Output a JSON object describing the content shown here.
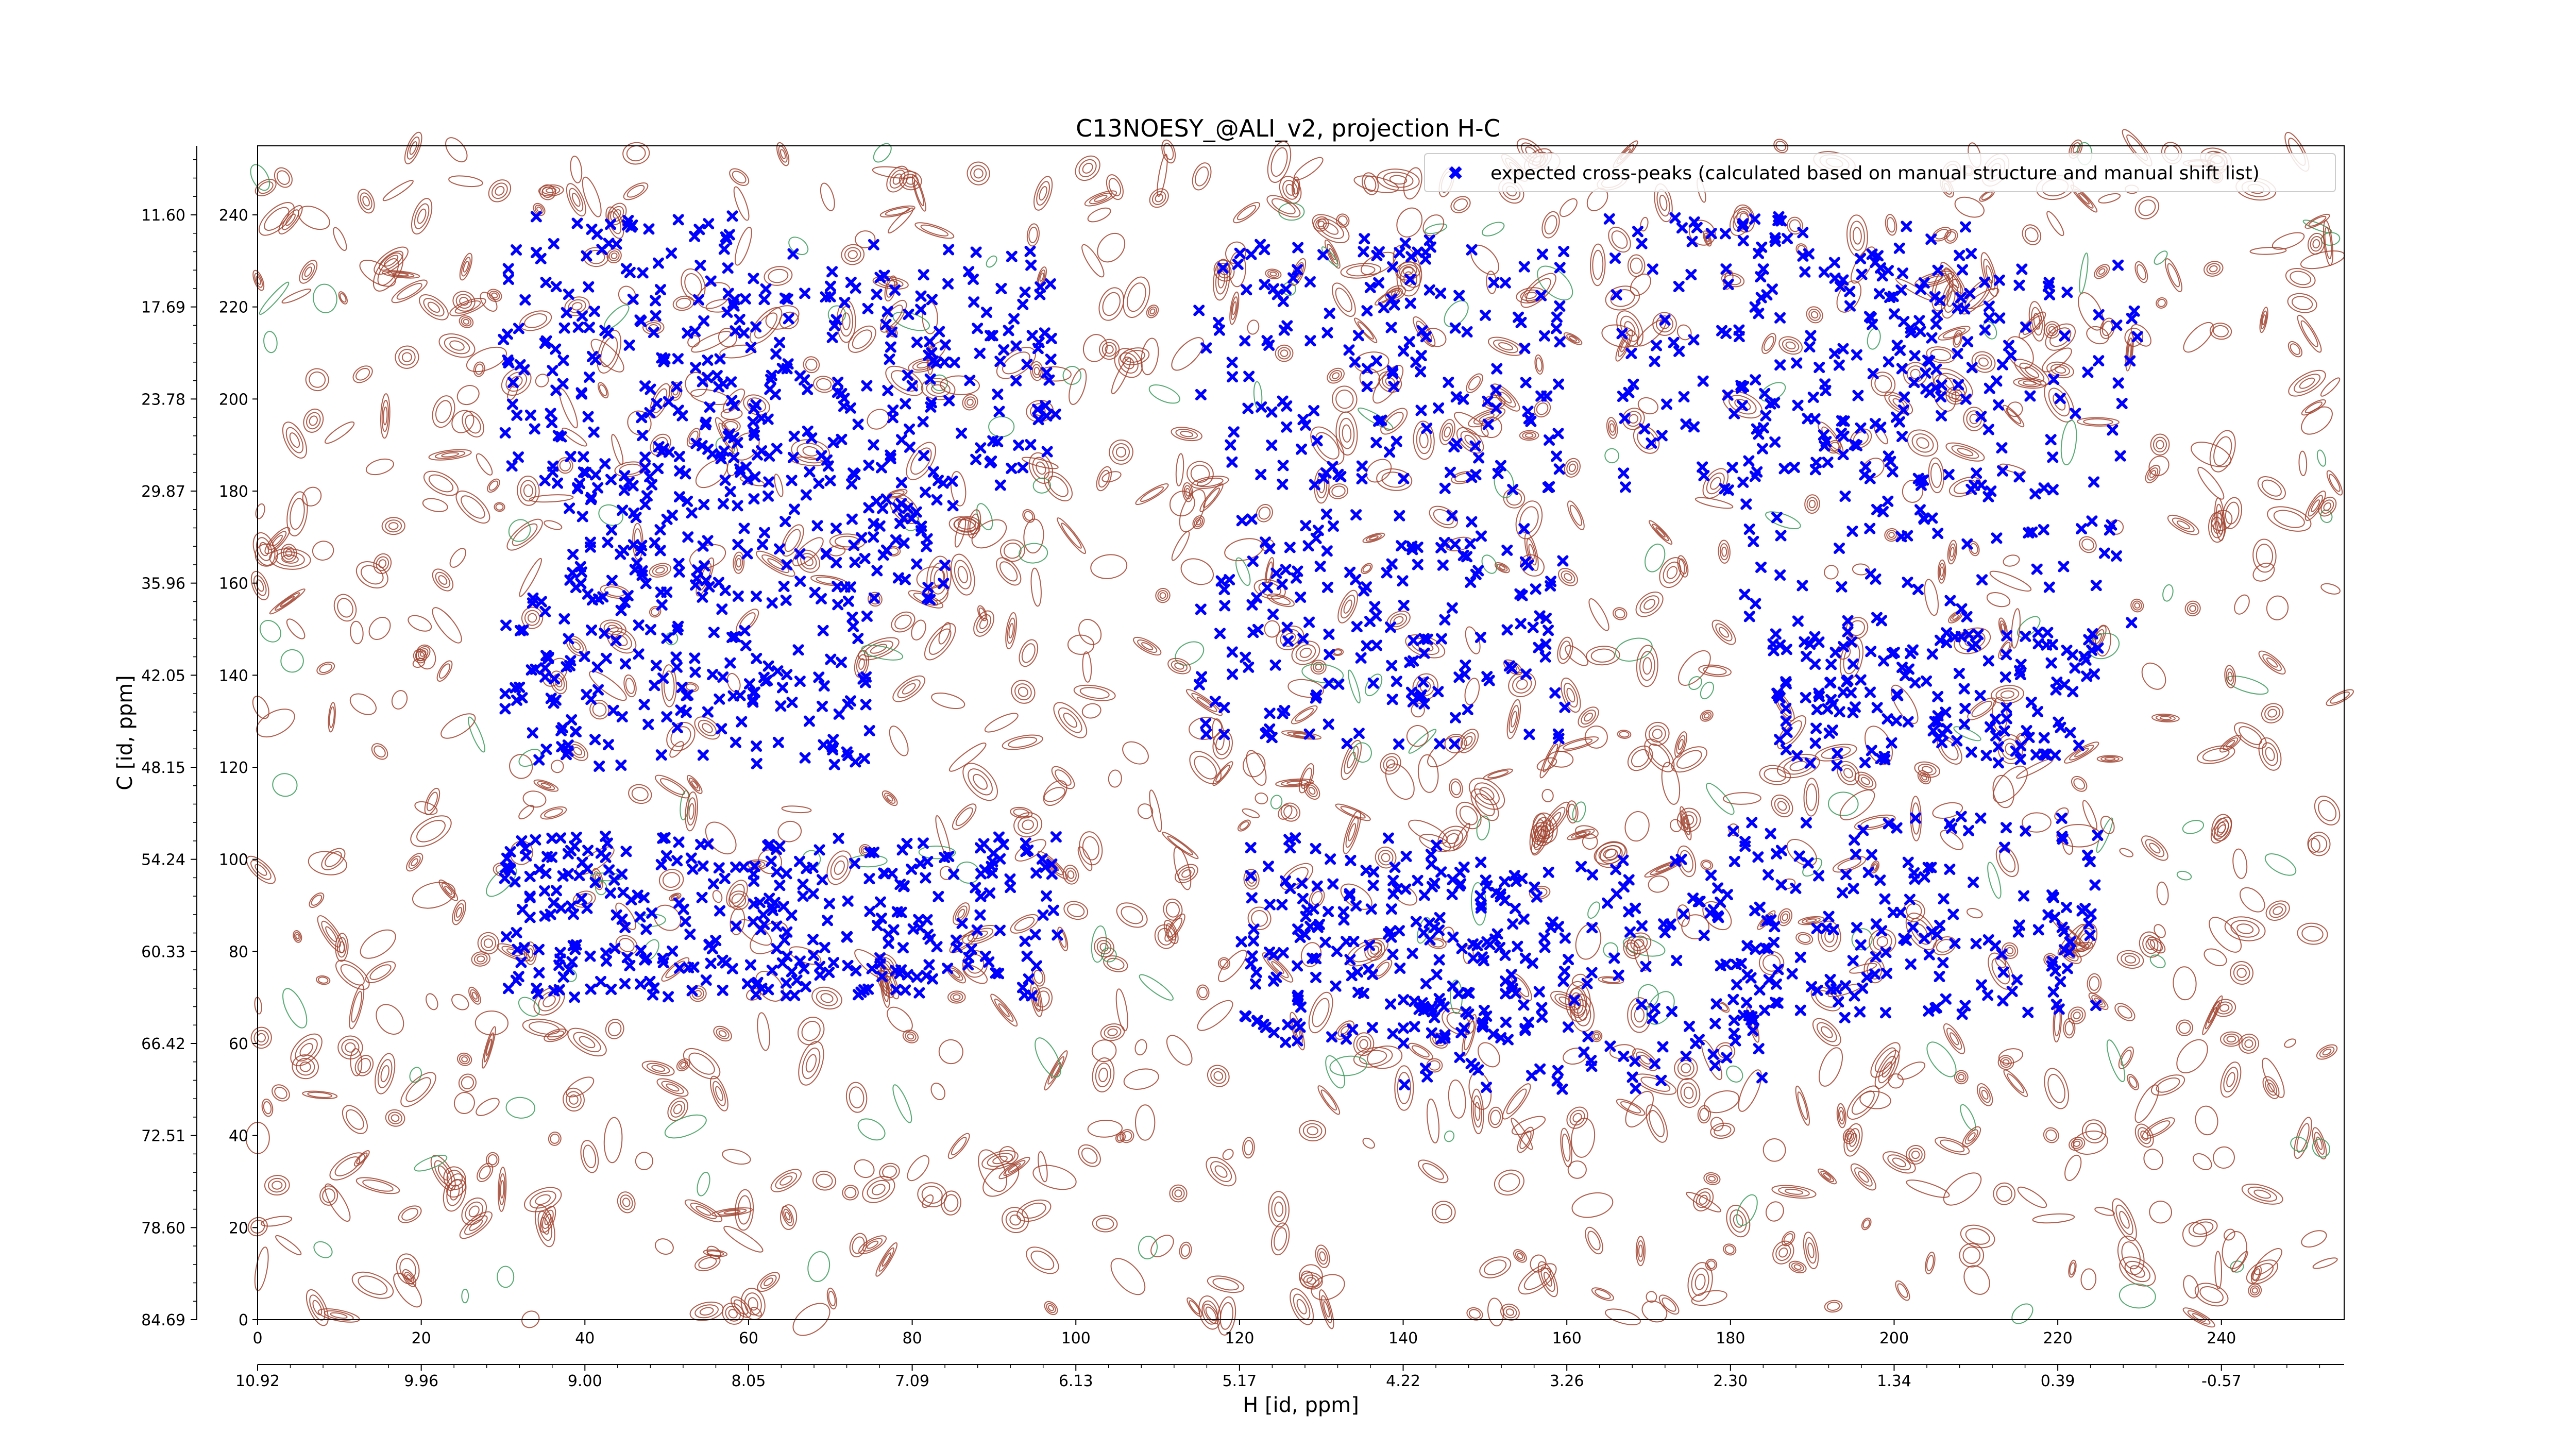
{
  "chart_data": {
    "type": "scatter",
    "title": "C13NOESY_@ALI_v2, projection H-C",
    "xlabel": "H [id, ppm]",
    "ylabel": "C [id, ppm]",
    "xlim": [
      0,
      255
    ],
    "ylim": [
      0,
      255
    ],
    "x_index_ticks": [
      "0",
      "20",
      "40",
      "60",
      "80",
      "100",
      "120",
      "140",
      "160",
      "180",
      "200",
      "220",
      "240"
    ],
    "x_ppm_ticks": [
      "10.92",
      "9.96",
      "9.00",
      "8.05",
      "7.09",
      "6.13",
      "5.17",
      "4.22",
      "3.26",
      "2.30",
      "1.34",
      "0.39",
      "-0.57"
    ],
    "y_index_ticks": [
      "0",
      "20",
      "40",
      "60",
      "80",
      "100",
      "120",
      "140",
      "160",
      "180",
      "200",
      "220",
      "240"
    ],
    "y_ppm_ticks": [
      "84.69",
      "78.60",
      "72.51",
      "66.42",
      "60.33",
      "54.24",
      "48.15",
      "42.05",
      "35.96",
      "29.87",
      "23.78",
      "17.69",
      "11.60"
    ],
    "legend": {
      "label": "expected cross-peaks (calculated based on manual structure and manual shift list)",
      "position": "upper right"
    },
    "colors": {
      "peaks": "#0000ff",
      "positive_contours": "#a0412d",
      "negative_contours": "#3a9a5a"
    },
    "series": [
      {
        "name": "expected cross-peaks (calculated based on manual structure and manual shift list)",
        "marker": "X",
        "clusters": [
          {
            "x": [
              30,
              60
            ],
            "y": [
              180,
              240
            ]
          },
          {
            "x": [
              60,
              98
            ],
            "y": [
              180,
              235
            ]
          },
          {
            "x": [
              38,
              85
            ],
            "y": [
              155,
              190
            ]
          },
          {
            "x": [
              30,
              75
            ],
            "y": [
              120,
              160
            ]
          },
          {
            "x": [
              30,
              65
            ],
            "y": [
              70,
              105
            ]
          },
          {
            "x": [
              60,
              98
            ],
            "y": [
              70,
              105
            ]
          },
          {
            "x": [
              115,
              160
            ],
            "y": [
              180,
              235
            ]
          },
          {
            "x": [
              115,
              160
            ],
            "y": [
              125,
              175
            ]
          },
          {
            "x": [
              120,
              155
            ],
            "y": [
              60,
              105
            ]
          },
          {
            "x": [
              165,
              215
            ],
            "y": [
              180,
              240
            ]
          },
          {
            "x": [
              180,
              230
            ],
            "y": [
              150,
              230
            ]
          },
          {
            "x": [
              185,
              225
            ],
            "y": [
              120,
              150
            ]
          },
          {
            "x": [
              180,
              225
            ],
            "y": [
              65,
              110
            ]
          },
          {
            "x": [
              140,
              185
            ],
            "y": [
              50,
              100
            ]
          }
        ]
      }
    ]
  }
}
